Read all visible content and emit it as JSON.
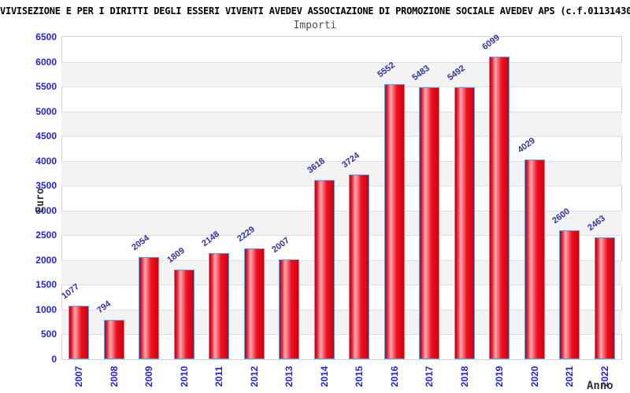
{
  "header": {
    "title": "VIVISEZIONE E PER I DIRITTI DEGLI ESSERI VIVENTI AVEDEV ASSOCIAZIONE DI PROMOZIONE SOCIALE AVEDEV APS (c.f.01131430",
    "subtitle": "Importi"
  },
  "chart_data": {
    "type": "bar",
    "title": "Importi",
    "categories": [
      "2007",
      "2008",
      "2009",
      "2010",
      "2011",
      "2012",
      "2013",
      "2014",
      "2015",
      "2016",
      "2017",
      "2018",
      "2019",
      "2020",
      "2021",
      "2022"
    ],
    "values": [
      1077,
      794,
      2054,
      1809,
      2148,
      2229,
      2007,
      3618,
      3724,
      5552,
      5483,
      5492,
      6099,
      4029,
      2600,
      2463
    ],
    "xlabel": "Anno",
    "ylabel": "Euro",
    "ylim": [
      0,
      6500
    ],
    "yticks": [
      0,
      500,
      1000,
      1500,
      2000,
      2500,
      3000,
      3500,
      4000,
      4500,
      5000,
      5500,
      6000,
      6500
    ],
    "grid": "horizontal gridlines with alternating gray bands",
    "legend_position": "none",
    "bar_value_labels_rotated": true,
    "x_tick_labels_rotated_90": true
  },
  "colors": {
    "bar_fill": "#ee1020",
    "bar_fill_light": "#ffaab2",
    "bar_fill_dark": "#c00018",
    "bar_border": "#58a0e8",
    "axis_tick_label": "#2424d6",
    "bar_value_label": "#32329e",
    "band_gray": "#f3f3f3",
    "grid_line": "#dedede",
    "plot_border": "#d2d2d2",
    "axis_title_text": "#333333",
    "title_text": "#000000",
    "subtitle_text": "#4d4d4d"
  }
}
